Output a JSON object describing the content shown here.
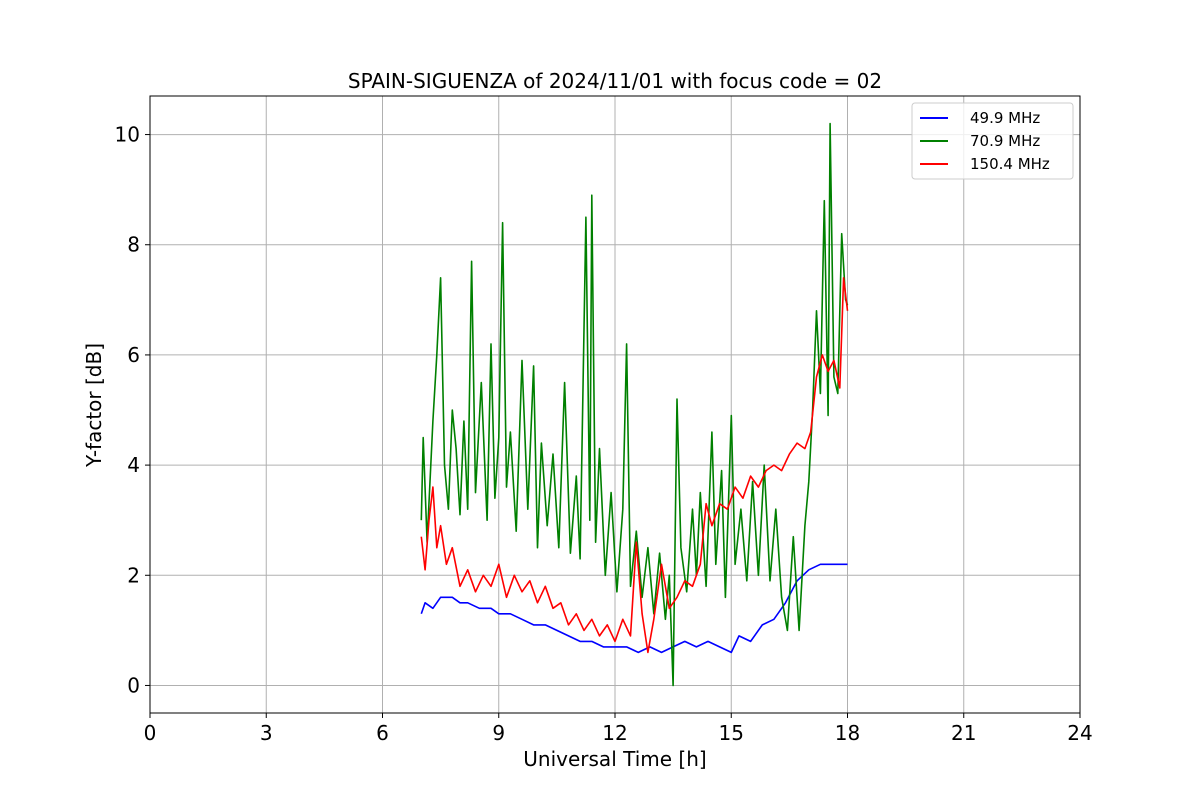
{
  "chart_data": {
    "type": "line",
    "title": "SPAIN-SIGUENZA of 2024/11/01 with focus code = 02",
    "xlabel": "Universal Time [h]",
    "ylabel": "Y-factor [dB]",
    "xlim": [
      0,
      24
    ],
    "ylim": [
      -0.5,
      10.7
    ],
    "xticks": [
      0,
      3,
      6,
      9,
      12,
      15,
      18,
      21,
      24
    ],
    "yticks": [
      0,
      2,
      4,
      6,
      8,
      10
    ],
    "grid": true,
    "legend_position": "top-right",
    "series": [
      {
        "name": "  49.9 MHz",
        "color": "#0000ff",
        "points": [
          [
            7.0,
            1.3
          ],
          [
            7.1,
            1.5
          ],
          [
            7.3,
            1.4
          ],
          [
            7.5,
            1.6
          ],
          [
            7.8,
            1.6
          ],
          [
            8.0,
            1.5
          ],
          [
            8.2,
            1.5
          ],
          [
            8.5,
            1.4
          ],
          [
            8.8,
            1.4
          ],
          [
            9.0,
            1.3
          ],
          [
            9.3,
            1.3
          ],
          [
            9.6,
            1.2
          ],
          [
            9.9,
            1.1
          ],
          [
            10.2,
            1.1
          ],
          [
            10.5,
            1.0
          ],
          [
            10.8,
            0.9
          ],
          [
            11.1,
            0.8
          ],
          [
            11.4,
            0.8
          ],
          [
            11.7,
            0.7
          ],
          [
            12.0,
            0.7
          ],
          [
            12.3,
            0.7
          ],
          [
            12.6,
            0.6
          ],
          [
            12.9,
            0.7
          ],
          [
            13.2,
            0.6
          ],
          [
            13.5,
            0.7
          ],
          [
            13.8,
            0.8
          ],
          [
            14.1,
            0.7
          ],
          [
            14.4,
            0.8
          ],
          [
            14.7,
            0.7
          ],
          [
            15.0,
            0.6
          ],
          [
            15.2,
            0.9
          ],
          [
            15.5,
            0.8
          ],
          [
            15.8,
            1.1
          ],
          [
            16.1,
            1.2
          ],
          [
            16.4,
            1.5
          ],
          [
            16.7,
            1.9
          ],
          [
            17.0,
            2.1
          ],
          [
            17.3,
            2.2
          ],
          [
            17.6,
            2.2
          ],
          [
            17.9,
            2.2
          ],
          [
            18.0,
            2.2
          ]
        ]
      },
      {
        "name": "  70.9 MHz",
        "color": "#008000",
        "points": [
          [
            7.0,
            3.0
          ],
          [
            7.05,
            4.5
          ],
          [
            7.15,
            2.6
          ],
          [
            7.3,
            4.8
          ],
          [
            7.4,
            6.0
          ],
          [
            7.5,
            7.4
          ],
          [
            7.6,
            4.0
          ],
          [
            7.7,
            3.2
          ],
          [
            7.8,
            5.0
          ],
          [
            7.9,
            4.3
          ],
          [
            8.0,
            3.1
          ],
          [
            8.1,
            4.8
          ],
          [
            8.2,
            3.2
          ],
          [
            8.3,
            7.7
          ],
          [
            8.4,
            3.5
          ],
          [
            8.55,
            5.5
          ],
          [
            8.7,
            3.0
          ],
          [
            8.8,
            6.2
          ],
          [
            8.9,
            3.4
          ],
          [
            9.0,
            4.5
          ],
          [
            9.1,
            8.4
          ],
          [
            9.2,
            3.6
          ],
          [
            9.3,
            4.6
          ],
          [
            9.45,
            2.8
          ],
          [
            9.6,
            5.9
          ],
          [
            9.75,
            3.2
          ],
          [
            9.9,
            5.8
          ],
          [
            10.0,
            2.5
          ],
          [
            10.1,
            4.4
          ],
          [
            10.25,
            2.9
          ],
          [
            10.4,
            4.2
          ],
          [
            10.55,
            2.5
          ],
          [
            10.7,
            5.5
          ],
          [
            10.85,
            2.4
          ],
          [
            11.0,
            3.8
          ],
          [
            11.1,
            2.3
          ],
          [
            11.25,
            8.5
          ],
          [
            11.35,
            3.0
          ],
          [
            11.4,
            8.9
          ],
          [
            11.5,
            2.6
          ],
          [
            11.6,
            4.3
          ],
          [
            11.75,
            2.0
          ],
          [
            11.9,
            3.5
          ],
          [
            12.05,
            1.7
          ],
          [
            12.2,
            3.2
          ],
          [
            12.3,
            6.2
          ],
          [
            12.4,
            1.8
          ],
          [
            12.55,
            2.8
          ],
          [
            12.7,
            1.6
          ],
          [
            12.85,
            2.5
          ],
          [
            13.0,
            1.3
          ],
          [
            13.15,
            2.4
          ],
          [
            13.3,
            1.2
          ],
          [
            13.4,
            2.0
          ],
          [
            13.5,
            0.0
          ],
          [
            13.6,
            5.2
          ],
          [
            13.7,
            2.5
          ],
          [
            13.85,
            1.7
          ],
          [
            14.0,
            3.2
          ],
          [
            14.1,
            2.0
          ],
          [
            14.2,
            3.5
          ],
          [
            14.35,
            1.8
          ],
          [
            14.5,
            4.6
          ],
          [
            14.6,
            2.2
          ],
          [
            14.75,
            3.9
          ],
          [
            14.85,
            1.6
          ],
          [
            15.0,
            4.9
          ],
          [
            15.1,
            2.2
          ],
          [
            15.25,
            3.2
          ],
          [
            15.4,
            1.9
          ],
          [
            15.55,
            3.7
          ],
          [
            15.7,
            2.0
          ],
          [
            15.85,
            4.0
          ],
          [
            16.0,
            1.9
          ],
          [
            16.15,
            3.2
          ],
          [
            16.3,
            1.6
          ],
          [
            16.45,
            1.0
          ],
          [
            16.6,
            2.7
          ],
          [
            16.75,
            1.0
          ],
          [
            16.9,
            2.9
          ],
          [
            17.0,
            3.7
          ],
          [
            17.1,
            5.0
          ],
          [
            17.2,
            6.8
          ],
          [
            17.3,
            5.3
          ],
          [
            17.4,
            8.8
          ],
          [
            17.5,
            4.9
          ],
          [
            17.55,
            10.2
          ],
          [
            17.65,
            5.6
          ],
          [
            17.75,
            5.3
          ],
          [
            17.85,
            8.2
          ],
          [
            17.95,
            7.0
          ],
          [
            18.0,
            6.9
          ]
        ]
      },
      {
        "name": "150.4 MHz",
        "color": "#ff0000",
        "points": [
          [
            7.0,
            2.7
          ],
          [
            7.1,
            2.1
          ],
          [
            7.2,
            3.0
          ],
          [
            7.3,
            3.6
          ],
          [
            7.4,
            2.5
          ],
          [
            7.5,
            2.9
          ],
          [
            7.65,
            2.2
          ],
          [
            7.8,
            2.5
          ],
          [
            8.0,
            1.8
          ],
          [
            8.2,
            2.1
          ],
          [
            8.4,
            1.7
          ],
          [
            8.6,
            2.0
          ],
          [
            8.8,
            1.8
          ],
          [
            9.0,
            2.2
          ],
          [
            9.2,
            1.6
          ],
          [
            9.4,
            2.0
          ],
          [
            9.6,
            1.7
          ],
          [
            9.8,
            1.9
          ],
          [
            10.0,
            1.5
          ],
          [
            10.2,
            1.8
          ],
          [
            10.4,
            1.4
          ],
          [
            10.6,
            1.5
          ],
          [
            10.8,
            1.1
          ],
          [
            11.0,
            1.3
          ],
          [
            11.2,
            1.0
          ],
          [
            11.4,
            1.2
          ],
          [
            11.6,
            0.9
          ],
          [
            11.8,
            1.1
          ],
          [
            12.0,
            0.8
          ],
          [
            12.2,
            1.2
          ],
          [
            12.4,
            0.9
          ],
          [
            12.55,
            2.6
          ],
          [
            12.7,
            1.3
          ],
          [
            12.85,
            0.6
          ],
          [
            13.0,
            1.2
          ],
          [
            13.2,
            2.2
          ],
          [
            13.4,
            1.4
          ],
          [
            13.6,
            1.6
          ],
          [
            13.8,
            1.9
          ],
          [
            14.0,
            1.8
          ],
          [
            14.2,
            2.2
          ],
          [
            14.35,
            3.3
          ],
          [
            14.5,
            2.9
          ],
          [
            14.7,
            3.3
          ],
          [
            14.9,
            3.2
          ],
          [
            15.1,
            3.6
          ],
          [
            15.3,
            3.4
          ],
          [
            15.5,
            3.8
          ],
          [
            15.7,
            3.6
          ],
          [
            15.9,
            3.9
          ],
          [
            16.1,
            4.0
          ],
          [
            16.3,
            3.9
          ],
          [
            16.5,
            4.2
          ],
          [
            16.7,
            4.4
          ],
          [
            16.9,
            4.3
          ],
          [
            17.05,
            4.6
          ],
          [
            17.2,
            5.6
          ],
          [
            17.35,
            6.0
          ],
          [
            17.5,
            5.7
          ],
          [
            17.65,
            5.9
          ],
          [
            17.8,
            5.4
          ],
          [
            17.9,
            7.4
          ],
          [
            18.0,
            6.8
          ]
        ]
      }
    ]
  }
}
